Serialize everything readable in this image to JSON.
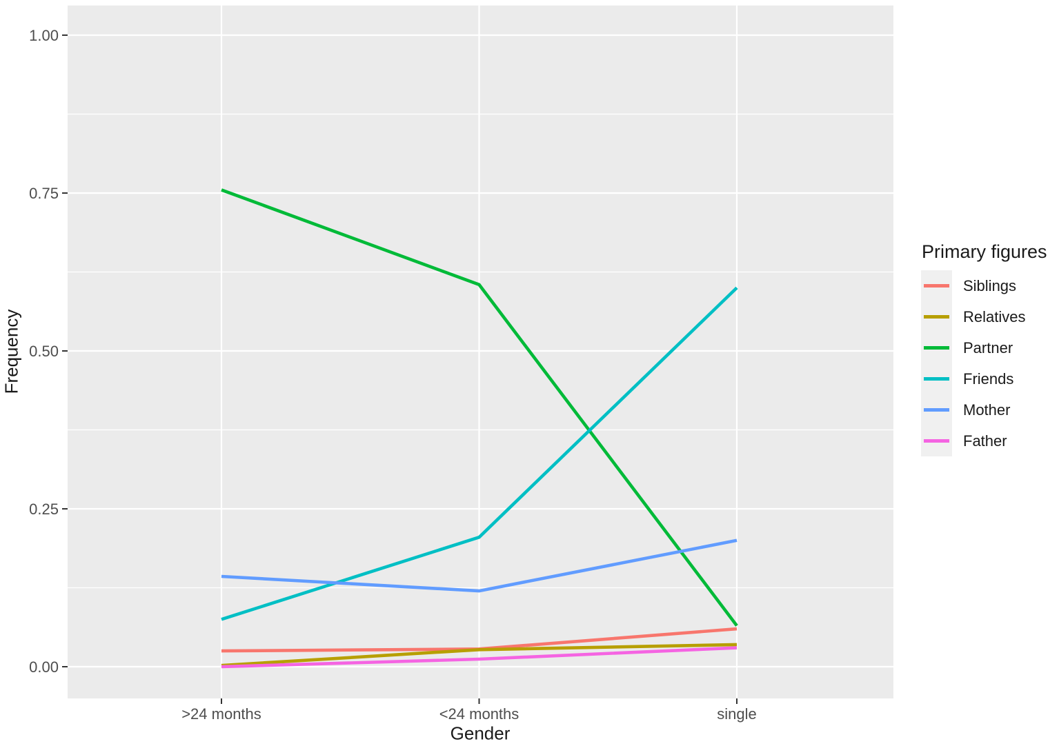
{
  "chart_data": {
    "type": "line",
    "title": "",
    "xlabel": "Gender",
    "ylabel": "Frequency",
    "categories": [
      ">24 months",
      "<24 months",
      "single"
    ],
    "y_ticks": [
      "0.00",
      "0.25",
      "0.50",
      "0.75",
      "1.00"
    ],
    "y_tick_values": [
      0.0,
      0.25,
      0.5,
      0.75,
      1.0
    ],
    "y_minor_values": [
      0.125,
      0.375,
      0.625,
      0.875
    ],
    "ylim": [
      -0.05,
      1.047
    ],
    "grid": "major-and-minor, white on gray panel",
    "legend": {
      "title": "Primary figures",
      "position": "right"
    },
    "colors": {
      "panel_bg": "#ebebeb",
      "grid": "#ffffff",
      "tick_label": "#4d4d4d",
      "tick_mark": "#333333",
      "axis_title": "#1a1a1a",
      "legend_key_bg": "#f0f0f0"
    },
    "series": [
      {
        "name": "Siblings",
        "color": "#F8766D",
        "values": [
          0.025,
          0.028,
          0.06
        ]
      },
      {
        "name": "Relatives",
        "color": "#B79F00",
        "values": [
          0.002,
          0.027,
          0.035
        ]
      },
      {
        "name": "Partner",
        "color": "#00BA38",
        "values": [
          0.755,
          0.605,
          0.065
        ]
      },
      {
        "name": "Friends",
        "color": "#00BFC4",
        "values": [
          0.075,
          0.205,
          0.6
        ]
      },
      {
        "name": "Mother",
        "color": "#619CFF",
        "values": [
          0.143,
          0.12,
          0.2
        ]
      },
      {
        "name": "Father",
        "color": "#F564E2",
        "values": [
          0.0,
          0.012,
          0.03
        ]
      }
    ]
  }
}
